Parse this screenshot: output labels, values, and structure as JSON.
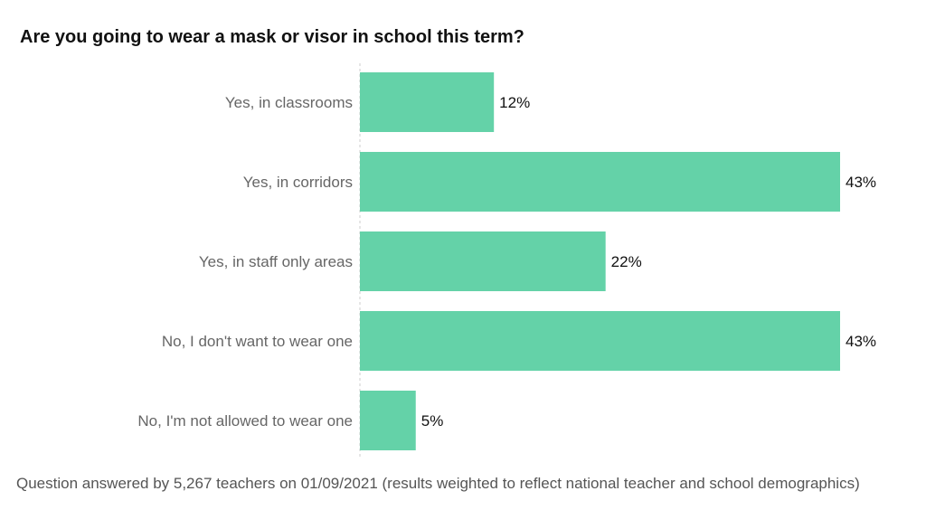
{
  "chart_data": {
    "type": "bar",
    "orientation": "horizontal",
    "title": "Are you going to wear a mask or visor in school this term?",
    "categories": [
      "Yes, in classrooms",
      "Yes, in corridors",
      "Yes, in staff only areas",
      "No, I don't want to wear one",
      "No, I'm not allowed to wear one"
    ],
    "values": [
      12,
      43,
      22,
      43,
      5
    ],
    "data_labels": [
      "12%",
      "43%",
      "22%",
      "43%",
      "5%"
    ],
    "xlim": [
      0,
      43
    ],
    "unit": "%",
    "grid": false,
    "bar_color": "#64d2a8",
    "footnote": "Question answered by 5,267 teachers on 01/09/2021 (results weighted to reflect national teacher and school demographics)"
  }
}
